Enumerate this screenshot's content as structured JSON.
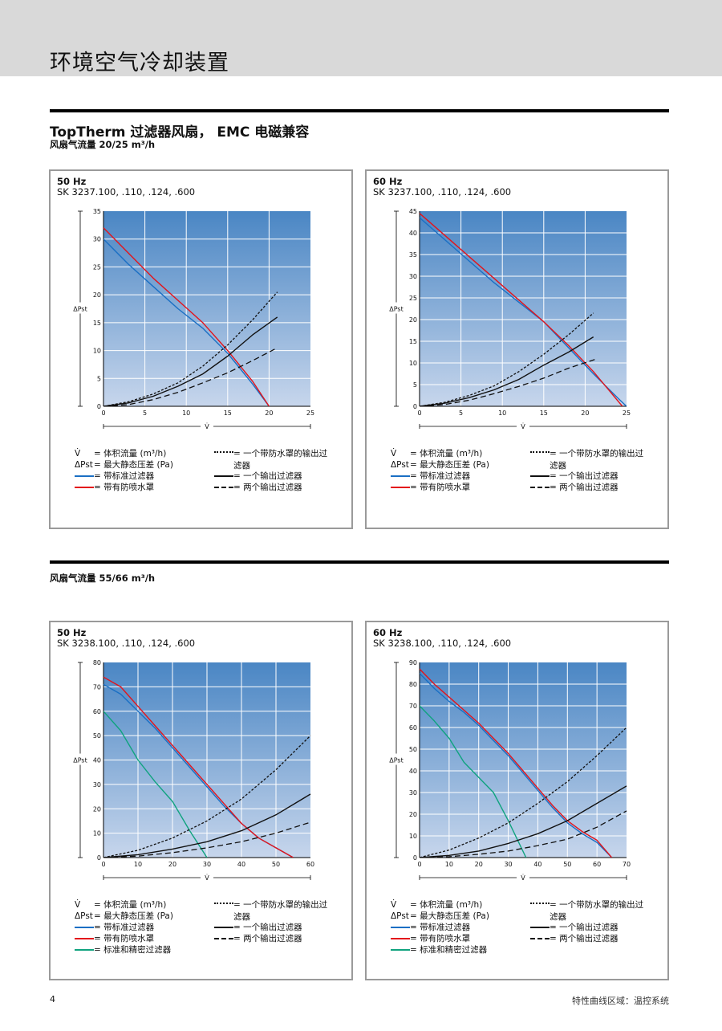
{
  "page": {
    "title": "环境空气冷却装置",
    "section_title": "TopTherm 过滤器风扇， EMC 电磁兼容",
    "subtitle1": "风扇气流量 20/25 m³/h",
    "subtitle2": "风扇气流量 55/66 m³/h",
    "footer_page": "4",
    "footer_text": "特性曲线区域：温控系统"
  },
  "legend": {
    "v_symbol": "V̇",
    "v_text": "= 体积流量 (m³/h)",
    "dp_symbol": "ΔPst",
    "dp_text": "= 最大静态压差 (Pa)",
    "blue": "= 带标准过滤器",
    "red": "= 带有防喷水罩",
    "green": "= 标准和精密过滤器",
    "dotted": "= 一个带防水罩的输出过滤器",
    "solid": "= 一个输出过滤器",
    "dashed": "= 两个输出过滤器"
  },
  "colors": {
    "blue": "#1a6fc4",
    "red": "#e3141b",
    "green": "#10a37f",
    "black": "#111111",
    "bg_top": "#4a86c4",
    "bg_bottom": "#c7d6ec"
  },
  "chart_data": [
    {
      "type": "line",
      "hz": "50 Hz",
      "model": "SK 3237.100, .110, .124, .600",
      "xlabel": "V̇",
      "ylabel": "ΔPst",
      "xlim": [
        0,
        25
      ],
      "ylim": [
        0,
        35
      ],
      "xticks": [
        0,
        5,
        10,
        15,
        20,
        25
      ],
      "yticks": [
        0,
        5,
        10,
        15,
        20,
        25,
        30,
        35
      ],
      "series": [
        {
          "style": "blue",
          "x": [
            0,
            3,
            6,
            9,
            12,
            15,
            18,
            20
          ],
          "y": [
            30,
            25.5,
            21.5,
            17.5,
            14,
            9.5,
            4,
            0
          ]
        },
        {
          "style": "red",
          "x": [
            0,
            3,
            6,
            9,
            12,
            15,
            18,
            20
          ],
          "y": [
            32,
            27.5,
            23,
            19,
            15,
            10,
            4.5,
            0
          ]
        },
        {
          "style": "dotted",
          "x": [
            0,
            3,
            6,
            9,
            12,
            15,
            18,
            21
          ],
          "y": [
            0,
            0.8,
            2.2,
            4.2,
            7.2,
            11,
            15.5,
            20.5
          ]
        },
        {
          "style": "solid",
          "x": [
            0,
            3,
            6,
            9,
            12,
            15,
            18,
            21
          ],
          "y": [
            0,
            0.6,
            1.8,
            3.6,
            5.8,
            9,
            12.8,
            16
          ]
        },
        {
          "style": "dashed",
          "x": [
            0,
            3,
            6,
            9,
            12,
            15,
            18,
            21
          ],
          "y": [
            0,
            0.3,
            1.2,
            2.5,
            4.2,
            6,
            8.2,
            10.5
          ]
        }
      ]
    },
    {
      "type": "line",
      "hz": "60 Hz",
      "model": "SK 3237.100, .110, .124, .600",
      "xlabel": "V̇",
      "ylabel": "ΔPst",
      "xlim": [
        0,
        25
      ],
      "ylim": [
        0,
        45
      ],
      "xticks": [
        0,
        5,
        10,
        15,
        20,
        25
      ],
      "yticks": [
        0,
        5,
        10,
        15,
        20,
        25,
        30,
        35,
        40,
        45
      ],
      "series": [
        {
          "style": "blue",
          "x": [
            0,
            3,
            6,
            9,
            12,
            15,
            18,
            21,
            24,
            25
          ],
          "y": [
            43.5,
            38.5,
            33.5,
            28.5,
            24,
            19.5,
            13.5,
            7.5,
            1.8,
            0
          ]
        },
        {
          "style": "red",
          "x": [
            0,
            3,
            6,
            9,
            12,
            15,
            18,
            21,
            24.5
          ],
          "y": [
            44.5,
            39.5,
            34.5,
            29.5,
            24.5,
            19.5,
            14,
            8,
            0
          ]
        },
        {
          "style": "dotted",
          "x": [
            0,
            3,
            6,
            9,
            12,
            15,
            18,
            21
          ],
          "y": [
            0,
            0.9,
            2.5,
            4.7,
            8,
            12,
            16.5,
            21.5
          ]
        },
        {
          "style": "solid",
          "x": [
            0,
            3,
            6,
            9,
            12,
            15,
            18,
            21
          ],
          "y": [
            0,
            0.7,
            2,
            3.8,
            6.2,
            9.5,
            12.5,
            16
          ]
        },
        {
          "style": "dashed",
          "x": [
            0,
            3,
            6,
            9,
            12,
            15,
            18,
            21.5
          ],
          "y": [
            0,
            0.4,
            1.4,
            2.9,
            4.6,
            6.5,
            8.8,
            11
          ]
        }
      ]
    },
    {
      "type": "line",
      "hz": "50 Hz",
      "model": "SK 3238.100, .110, .124, .600",
      "xlabel": "V̇",
      "ylabel": "ΔPst",
      "xlim": [
        0,
        60
      ],
      "ylim": [
        0,
        80
      ],
      "xticks": [
        0,
        10,
        20,
        30,
        40,
        50,
        60
      ],
      "yticks": [
        0,
        10,
        20,
        30,
        40,
        50,
        60,
        70,
        80
      ],
      "series": [
        {
          "style": "blue",
          "x": [
            0,
            5,
            10,
            15,
            20,
            25,
            30,
            35,
            40,
            45,
            50,
            55
          ],
          "y": [
            71,
            67,
            60,
            53,
            45,
            37,
            29,
            21,
            14,
            8,
            4,
            0
          ]
        },
        {
          "style": "red",
          "x": [
            0,
            5,
            10,
            15,
            20,
            25,
            30,
            35,
            40,
            45,
            50,
            55
          ],
          "y": [
            74,
            70,
            62,
            54,
            46,
            38,
            30,
            22,
            14,
            8,
            4,
            0
          ]
        },
        {
          "style": "green",
          "x": [
            0,
            5,
            10,
            15,
            20,
            25,
            30
          ],
          "y": [
            60,
            52,
            40,
            31,
            23,
            11,
            0
          ]
        },
        {
          "style": "dotted",
          "x": [
            0,
            10,
            20,
            30,
            40,
            50,
            60
          ],
          "y": [
            0,
            3,
            8,
            15,
            24,
            36,
            50
          ]
        },
        {
          "style": "solid",
          "x": [
            0,
            10,
            20,
            30,
            40,
            50,
            60
          ],
          "y": [
            0,
            1.2,
            3.5,
            6.5,
            11,
            17.5,
            26
          ]
        },
        {
          "style": "dashed",
          "x": [
            0,
            10,
            20,
            30,
            40,
            50,
            60
          ],
          "y": [
            0,
            0.6,
            2,
            4,
            6.5,
            10,
            14.5
          ]
        }
      ]
    },
    {
      "type": "line",
      "hz": "60 Hz",
      "model": "SK 3238.100, .110, .124, .600",
      "xlabel": "V̇",
      "ylabel": "ΔPst",
      "xlim": [
        0,
        70
      ],
      "ylim": [
        0,
        90
      ],
      "xticks": [
        0,
        10,
        20,
        30,
        40,
        50,
        60,
        70
      ],
      "yticks": [
        0,
        10,
        20,
        30,
        40,
        50,
        60,
        70,
        80,
        90
      ],
      "series": [
        {
          "style": "blue",
          "x": [
            0,
            5,
            10,
            15,
            20,
            25,
            30,
            35,
            40,
            45,
            50,
            55,
            60,
            65
          ],
          "y": [
            85,
            78,
            72,
            67,
            61,
            54,
            47,
            39,
            31,
            23,
            16,
            11,
            7,
            0
          ]
        },
        {
          "style": "red",
          "x": [
            0,
            5,
            10,
            15,
            20,
            25,
            30,
            35,
            40,
            45,
            50,
            55,
            60,
            65
          ],
          "y": [
            87,
            80,
            74,
            68,
            62,
            55,
            48,
            40,
            32,
            24,
            17,
            12,
            8,
            0
          ]
        },
        {
          "style": "green",
          "x": [
            0,
            5,
            10,
            15,
            20,
            25,
            30,
            36
          ],
          "y": [
            70,
            63,
            55,
            44,
            37,
            30,
            17,
            0
          ]
        },
        {
          "style": "dotted",
          "x": [
            0,
            10,
            20,
            30,
            40,
            50,
            60,
            70
          ],
          "y": [
            0,
            3.5,
            9,
            16,
            25,
            35,
            47,
            60
          ]
        },
        {
          "style": "solid",
          "x": [
            0,
            10,
            20,
            30,
            40,
            50,
            60,
            70
          ],
          "y": [
            0,
            1,
            3,
            6.5,
            11,
            17,
            25,
            33
          ]
        },
        {
          "style": "dashed",
          "x": [
            0,
            10,
            20,
            30,
            40,
            50,
            60,
            70
          ],
          "y": [
            0,
            0.4,
            1.5,
            3,
            5.5,
            8.5,
            14,
            21.5
          ]
        }
      ]
    }
  ]
}
